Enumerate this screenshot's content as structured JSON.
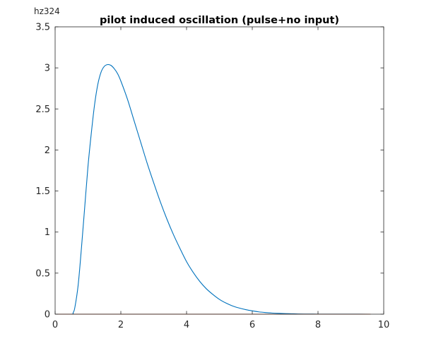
{
  "chart_data": {
    "type": "line",
    "title": "pilot induced oscillation (pulse+no input)",
    "corner_label": "hz324",
    "xlabel": "",
    "ylabel": "",
    "xlim": [
      0,
      10
    ],
    "ylim": [
      0,
      3.5
    ],
    "xticks": [
      0,
      2,
      4,
      6,
      8,
      10
    ],
    "xtick_labels": [
      "0",
      "2",
      "4",
      "6",
      "8",
      "10"
    ],
    "yticks": [
      0,
      0.5,
      1,
      1.5,
      2,
      2.5,
      3,
      3.5
    ],
    "ytick_labels": [
      "0",
      "0.5",
      "1",
      "1.5",
      "2",
      "2.5",
      "3",
      "3.5"
    ],
    "grid": false,
    "box": true,
    "series": [
      {
        "color": "#0072BD",
        "x": [
          0,
          0.5,
          0.55,
          0.6,
          0.7,
          0.8,
          0.9,
          1.0,
          1.1,
          1.2,
          1.3,
          1.4,
          1.5,
          1.6,
          1.7,
          1.8,
          1.9,
          2.0,
          2.2,
          2.4,
          2.6,
          2.8,
          3.0,
          3.2,
          3.4,
          3.6,
          3.8,
          4.0,
          4.2,
          4.4,
          4.6,
          4.8,
          5.0,
          5.2,
          5.4,
          5.6,
          5.8,
          6.0,
          6.2,
          6.4,
          6.6,
          6.8,
          7.0,
          7.2,
          7.4,
          7.6,
          7.8,
          8.0,
          8.5,
          9.0,
          9.6
        ],
        "y": [
          0,
          0,
          0.02,
          0.08,
          0.35,
          0.8,
          1.3,
          1.8,
          2.2,
          2.55,
          2.8,
          2.95,
          3.02,
          3.04,
          3.03,
          2.99,
          2.93,
          2.84,
          2.62,
          2.36,
          2.1,
          1.84,
          1.6,
          1.37,
          1.16,
          0.97,
          0.8,
          0.64,
          0.51,
          0.4,
          0.31,
          0.24,
          0.18,
          0.135,
          0.1,
          0.075,
          0.055,
          0.04,
          0.028,
          0.02,
          0.014,
          0.01,
          0.007,
          0.005,
          0.003,
          0.002,
          0.0015,
          0.001,
          0.0005,
          0.0002,
          0.0001
        ]
      },
      {
        "color": "#D95319",
        "x": [
          0,
          9.6
        ],
        "y": [
          0,
          0
        ]
      }
    ]
  }
}
